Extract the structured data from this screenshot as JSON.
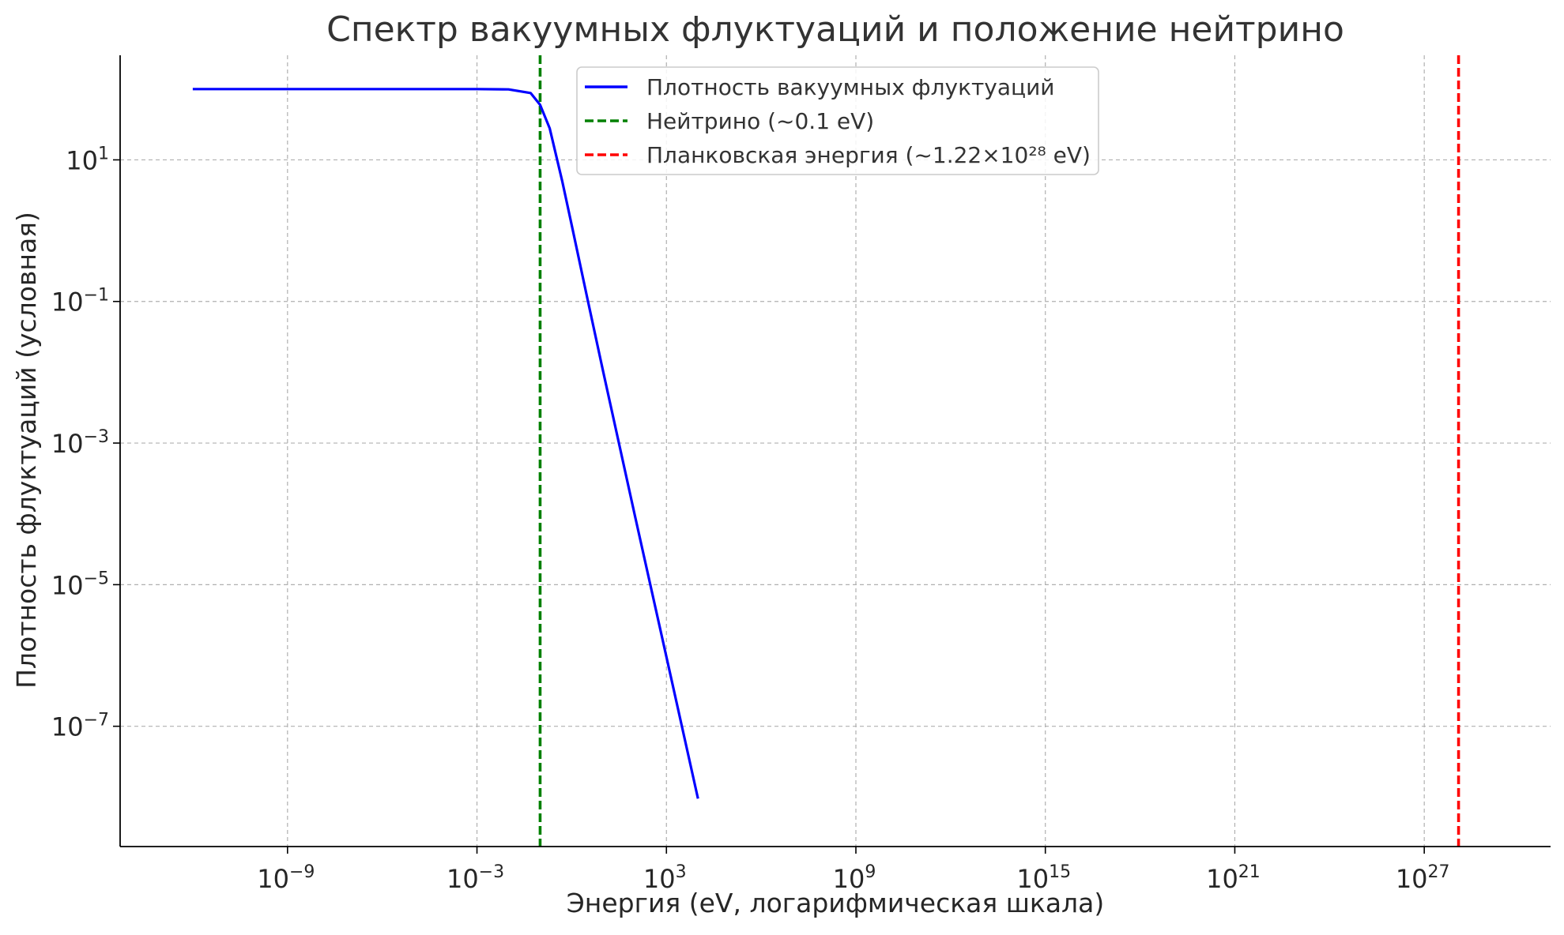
{
  "chart_data": {
    "type": "line",
    "title": "Спектр вакуумных флуктуаций и положение нейтрино",
    "xlabel": "Энергия (eV, логарифмическая шкала)",
    "ylabel": "Плотность флуктуаций (условная)",
    "x_scale": "log",
    "y_scale": "log",
    "xlim": [
      5e-15,
      1e+31
    ],
    "ylim": [
      2e-09,
      300
    ],
    "x_ticks": [
      {
        "base": "10",
        "exp": "−9",
        "value": 1e-09
      },
      {
        "base": "10",
        "exp": "−3",
        "value": 0.001
      },
      {
        "base": "10",
        "exp": "3",
        "value": 1000
      },
      {
        "base": "10",
        "exp": "9",
        "value": 1000000000.0
      },
      {
        "base": "10",
        "exp": "15",
        "value": 1000000000000000.0
      },
      {
        "base": "10",
        "exp": "21",
        "value": 1e+21
      },
      {
        "base": "10",
        "exp": "27",
        "value": 1e+27
      }
    ],
    "y_ticks": [
      {
        "base": "10",
        "exp": "1",
        "value": 10
      },
      {
        "base": "10",
        "exp": "−1",
        "value": 0.1
      },
      {
        "base": "10",
        "exp": "−3",
        "value": 0.001
      },
      {
        "base": "10",
        "exp": "−5",
        "value": 1e-05
      },
      {
        "base": "10",
        "exp": "−7",
        "value": 1e-07
      }
    ],
    "grid": true,
    "legend_position": "top-center",
    "series": [
      {
        "name": "Плотность вакуумных флуктуаций",
        "color": "#0000ff",
        "style": "solid",
        "x": [
          1e-12,
          1e-06,
          0.001,
          0.01,
          0.05,
          0.1,
          0.2,
          0.5,
          1,
          3,
          10,
          100,
          1000,
          10000
        ],
        "y": [
          100,
          100,
          100,
          99,
          88,
          60,
          28,
          5,
          1.2,
          0.12,
          0.01,
          9.5e-05,
          9.5e-07,
          9.5e-09
        ]
      }
    ],
    "vlines": [
      {
        "name": "Нейтрино (~0.1 eV)",
        "x": 0.1,
        "color": "#008000",
        "style": "dashed"
      },
      {
        "name": "Планковская энергия (~1.22×10²⁸ eV)",
        "x": 1.22e+28,
        "color": "#ff0000",
        "style": "dashed"
      }
    ]
  }
}
